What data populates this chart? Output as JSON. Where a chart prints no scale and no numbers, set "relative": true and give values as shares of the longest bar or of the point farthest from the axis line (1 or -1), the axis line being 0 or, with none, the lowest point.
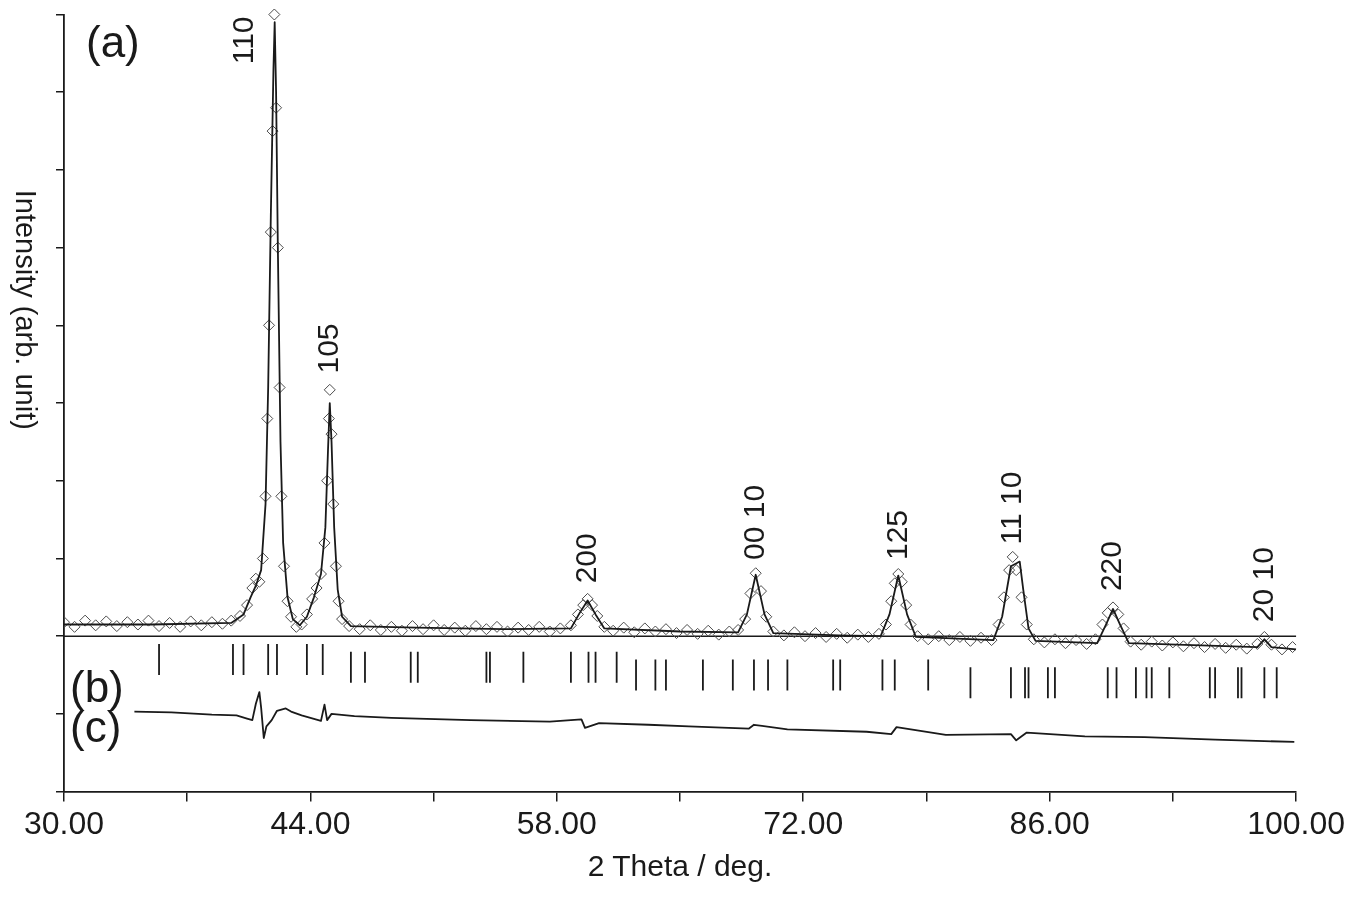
{
  "chart_data": {
    "type": "line",
    "xlabel": "2 Theta / deg.",
    "ylabel": "Intensity (arb. unit)",
    "relative": true,
    "xlim": [
      30,
      100
    ],
    "xticks": [
      {
        "value": 30,
        "label": "30.00"
      },
      {
        "value": 37,
        "label": null
      },
      {
        "value": 44,
        "label": "44.00"
      },
      {
        "value": 51,
        "label": null
      },
      {
        "value": 58,
        "label": "58.00"
      },
      {
        "value": 65,
        "label": null
      },
      {
        "value": 72,
        "label": "72.00"
      },
      {
        "value": 79,
        "label": null
      },
      {
        "value": 86,
        "label": "86.00"
      },
      {
        "value": 93,
        "label": null
      },
      {
        "value": 100,
        "label": "100.00"
      }
    ],
    "ref_lines": [
      {
        "axis": "y",
        "value": 0.2,
        "color": "#1a1a1a"
      }
    ],
    "annotations": [
      "(a)",
      "(b)",
      "(c)",
      {
        "text": "110",
        "x": 41.95,
        "y": 1.0
      },
      {
        "text": "105",
        "x": 45.1,
        "y": 0.52
      },
      {
        "text": "200",
        "x": 59.75,
        "y": 0.25
      },
      {
        "text": "00 10",
        "x": 69.3,
        "y": 0.28
      },
      {
        "text": "125",
        "x": 77.4,
        "y": 0.28
      },
      {
        "text": "11 10",
        "x": 83.9,
        "y": 0.3
      },
      {
        "text": "220",
        "x": 89.6,
        "y": 0.24
      },
      {
        "text": "20 10",
        "x": 98.2,
        "y": 0.2
      }
    ],
    "series": [
      {
        "type": "scatter",
        "marker": "diamond",
        "color": "#4d4d4d",
        "x": [
          30,
          30.6,
          31.2,
          31.8,
          32.4,
          33,
          33.6,
          34.2,
          34.8,
          35.4,
          36,
          36.6,
          37.2,
          37.8,
          38.4,
          39,
          39.5,
          40,
          40.4,
          40.7,
          40.9,
          41.1,
          41.3,
          41.45,
          41.55,
          41.65,
          41.75,
          41.85,
          41.95,
          42.05,
          42.15,
          42.25,
          42.35,
          42.5,
          42.7,
          42.9,
          43.2,
          43.5,
          43.8,
          44.1,
          44.35,
          44.6,
          44.8,
          44.95,
          45.05,
          45.1,
          45.2,
          45.3,
          45.45,
          45.6,
          45.8,
          46.2,
          46.8,
          47.4,
          48,
          48.6,
          49.2,
          49.8,
          50.4,
          51,
          51.6,
          52.2,
          52.8,
          53.4,
          54,
          54.6,
          55.2,
          55.8,
          56.4,
          57,
          57.6,
          58.2,
          58.8,
          59.2,
          59.5,
          59.75,
          60,
          60.3,
          60.7,
          61.2,
          61.8,
          62.4,
          63,
          63.6,
          64.2,
          64.8,
          65.4,
          66,
          66.6,
          67.2,
          67.8,
          68.3,
          68.7,
          69,
          69.3,
          69.6,
          69.9,
          70.3,
          70.9,
          71.5,
          72.1,
          72.7,
          73.3,
          73.9,
          74.5,
          75.1,
          75.7,
          76.3,
          76.7,
          77,
          77.2,
          77.4,
          77.6,
          77.85,
          78.1,
          78.5,
          79.1,
          79.7,
          80.3,
          80.9,
          81.5,
          82.1,
          82.7,
          83.1,
          83.4,
          83.7,
          83.9,
          84.1,
          84.4,
          84.7,
          85.1,
          85.7,
          86.3,
          86.9,
          87.5,
          88.1,
          88.6,
          89,
          89.3,
          89.6,
          89.9,
          90.2,
          90.6,
          91.2,
          91.8,
          92.4,
          93,
          93.6,
          94.2,
          94.8,
          95.4,
          96,
          96.6,
          97.2,
          97.8,
          98.2,
          98.6,
          99.2,
          99.8
        ],
        "values": [
          0.218,
          0.212,
          0.22,
          0.214,
          0.219,
          0.213,
          0.218,
          0.215,
          0.22,
          0.213,
          0.217,
          0.212,
          0.219,
          0.214,
          0.218,
          0.216,
          0.22,
          0.226,
          0.24,
          0.262,
          0.274,
          0.27,
          0.3,
          0.38,
          0.48,
          0.6,
          0.72,
          0.85,
          1.0,
          0.88,
          0.7,
          0.52,
          0.38,
          0.29,
          0.245,
          0.225,
          0.212,
          0.215,
          0.228,
          0.248,
          0.262,
          0.28,
          0.32,
          0.4,
          0.48,
          0.517,
          0.46,
          0.37,
          0.29,
          0.245,
          0.222,
          0.213,
          0.209,
          0.214,
          0.208,
          0.212,
          0.207,
          0.213,
          0.209,
          0.214,
          0.208,
          0.211,
          0.207,
          0.213,
          0.209,
          0.212,
          0.206,
          0.211,
          0.208,
          0.212,
          0.206,
          0.21,
          0.214,
          0.228,
          0.24,
          0.248,
          0.24,
          0.226,
          0.212,
          0.207,
          0.211,
          0.205,
          0.21,
          0.206,
          0.209,
          0.204,
          0.208,
          0.203,
          0.207,
          0.202,
          0.206,
          0.208,
          0.222,
          0.255,
          0.281,
          0.258,
          0.225,
          0.206,
          0.201,
          0.205,
          0.2,
          0.204,
          0.199,
          0.203,
          0.198,
          0.202,
          0.199,
          0.203,
          0.215,
          0.245,
          0.268,
          0.28,
          0.27,
          0.24,
          0.215,
          0.2,
          0.196,
          0.2,
          0.195,
          0.199,
          0.194,
          0.198,
          0.195,
          0.215,
          0.25,
          0.285,
          0.302,
          0.285,
          0.25,
          0.215,
          0.196,
          0.192,
          0.196,
          0.191,
          0.195,
          0.19,
          0.196,
          0.215,
          0.23,
          0.237,
          0.228,
          0.21,
          0.193,
          0.189,
          0.193,
          0.188,
          0.192,
          0.187,
          0.191,
          0.186,
          0.19,
          0.185,
          0.189,
          0.184,
          0.19,
          0.199,
          0.189,
          0.183,
          0.186
        ]
      },
      {
        "color": "#1a1a1a",
        "x": [
          30,
          35,
          39.5,
          40.2,
          40.6,
          40.9,
          41.2,
          41.45,
          41.6,
          41.75,
          41.9,
          41.97,
          42.05,
          42.15,
          42.3,
          42.45,
          42.7,
          43,
          43.4,
          43.8,
          44.2,
          44.6,
          44.85,
          45,
          45.1,
          45.2,
          45.35,
          45.55,
          45.8,
          46.3,
          50,
          55,
          58.8,
          59.3,
          59.75,
          60.2,
          60.7,
          65,
          68.3,
          68.8,
          69.3,
          69.8,
          70.3,
          74,
          76.4,
          76.9,
          77.4,
          77.9,
          78.4,
          82.8,
          83.3,
          83.8,
          84.3,
          84.5,
          84.8,
          85.2,
          88.7,
          89.2,
          89.6,
          90,
          90.5,
          97.8,
          98.2,
          98.6,
          100
        ],
        "values": [
          0.215,
          0.215,
          0.217,
          0.228,
          0.25,
          0.265,
          0.285,
          0.37,
          0.52,
          0.74,
          0.93,
          0.99,
          0.9,
          0.7,
          0.45,
          0.32,
          0.25,
          0.222,
          0.214,
          0.225,
          0.25,
          0.28,
          0.34,
          0.44,
          0.5,
          0.45,
          0.34,
          0.26,
          0.225,
          0.213,
          0.211,
          0.209,
          0.21,
          0.23,
          0.246,
          0.228,
          0.21,
          0.206,
          0.205,
          0.228,
          0.279,
          0.228,
          0.204,
          0.201,
          0.2,
          0.228,
          0.278,
          0.228,
          0.199,
          0.195,
          0.225,
          0.29,
          0.296,
          0.26,
          0.21,
          0.194,
          0.191,
          0.215,
          0.235,
          0.215,
          0.191,
          0.186,
          0.196,
          0.186,
          0.183
        ]
      },
      {
        "color": "#1a1a1a",
        "x": [
          35.4,
          35.4,
          null,
          39.6,
          39.6,
          null,
          40.2,
          40.2,
          null,
          41.6,
          41.6,
          null,
          42.1,
          42.1,
          null,
          43.8,
          43.8,
          null,
          44.7,
          44.7,
          null,
          46.3,
          46.3,
          null,
          47.1,
          47.1,
          null,
          49.7,
          49.7,
          null,
          50.1,
          50.1,
          null,
          54,
          54,
          null,
          54.2,
          54.2,
          null,
          56.1,
          56.1,
          null,
          58.8,
          58.8,
          null,
          59.8,
          59.8,
          null,
          60.2,
          60.2,
          null,
          61.4,
          61.4,
          null,
          62.5,
          62.5,
          null,
          63.6,
          63.6,
          null,
          64.2,
          64.2,
          null,
          66.3,
          66.3,
          null,
          68,
          68,
          null,
          69.2,
          69.2,
          null,
          70,
          70,
          null,
          71.1,
          71.1,
          null,
          73.7,
          73.7,
          null,
          74.1,
          74.1,
          null,
          76.5,
          76.5,
          null,
          77.2,
          77.2,
          null,
          79.1,
          79.1,
          null,
          81.5,
          81.5,
          null,
          83.8,
          83.8,
          null,
          84.6,
          84.6,
          null,
          84.8,
          84.8,
          null,
          85.9,
          85.9,
          null,
          86.3,
          86.3,
          null,
          89.3,
          89.3,
          null,
          89.8,
          89.8,
          null,
          90.9,
          90.9,
          null,
          91.5,
          91.5,
          null,
          91.8,
          91.8,
          null,
          92.8,
          92.8,
          null,
          95.1,
          95.1,
          null,
          95.4,
          95.4,
          null,
          96.7,
          96.7,
          null,
          96.9,
          96.9,
          null,
          98.2,
          98.2,
          null,
          98.9,
          98.9
        ],
        "values": [
          0.15,
          0.19,
          null,
          0.15,
          0.19,
          null,
          0.15,
          0.19,
          null,
          0.15,
          0.19,
          null,
          0.15,
          0.19,
          null,
          0.15,
          0.19,
          null,
          0.15,
          0.19,
          null,
          0.14,
          0.18,
          null,
          0.14,
          0.18,
          null,
          0.14,
          0.18,
          null,
          0.14,
          0.18,
          null,
          0.14,
          0.18,
          null,
          0.14,
          0.18,
          null,
          0.14,
          0.18,
          null,
          0.14,
          0.18,
          null,
          0.14,
          0.18,
          null,
          0.14,
          0.18,
          null,
          0.14,
          0.18,
          null,
          0.13,
          0.17,
          null,
          0.13,
          0.17,
          null,
          0.13,
          0.17,
          null,
          0.13,
          0.17,
          null,
          0.13,
          0.17,
          null,
          0.13,
          0.17,
          null,
          0.13,
          0.17,
          null,
          0.13,
          0.17,
          null,
          0.13,
          0.17,
          null,
          0.13,
          0.17,
          null,
          0.13,
          0.17,
          null,
          0.13,
          0.17,
          null,
          0.13,
          0.17,
          null,
          0.12,
          0.16,
          null,
          0.12,
          0.16,
          null,
          0.12,
          0.16,
          null,
          0.12,
          0.16,
          null,
          0.12,
          0.16,
          null,
          0.12,
          0.16,
          null,
          0.12,
          0.16,
          null,
          0.12,
          0.16,
          null,
          0.12,
          0.16,
          null,
          0.12,
          0.16,
          null,
          0.12,
          0.16,
          null,
          0.12,
          0.16,
          null,
          0.12,
          0.16,
          null,
          0.12,
          0.16,
          null,
          0.12,
          0.16,
          null,
          0.12,
          0.16,
          null,
          0.12,
          0.16,
          null,
          0.12,
          0.16
        ]
      },
      {
        "color": "#1a1a1a",
        "x": [
          34,
          36.1,
          38.4,
          39.8,
          40.4,
          40.7,
          40.9,
          41.1,
          41.2,
          41.35,
          41.5,
          41.8,
          42.1,
          42.6,
          42.9,
          43.5,
          44.3,
          44.6,
          44.8,
          44.95,
          45.2,
          46.5,
          48.6,
          53.1,
          57.6,
          59.4,
          59.6,
          60.4,
          63.2,
          65.5,
          68.9,
          69.2,
          71.1,
          75.6,
          77,
          77.3,
          80.1,
          83.8,
          84.1,
          84.7,
          88,
          91.4,
          95.4,
          98.2,
          99.9
        ],
        "values": [
          0.103,
          0.102,
          0.099,
          0.098,
          0.094,
          0.092,
          0.113,
          0.128,
          0.108,
          0.069,
          0.084,
          0.092,
          0.104,
          0.107,
          0.103,
          0.098,
          0.093,
          0.091,
          0.112,
          0.092,
          0.1,
          0.097,
          0.095,
          0.092,
          0.09,
          0.093,
          0.082,
          0.088,
          0.086,
          0.084,
          0.081,
          0.086,
          0.08,
          0.077,
          0.074,
          0.083,
          0.073,
          0.074,
          0.066,
          0.076,
          0.071,
          0.07,
          0.067,
          0.065,
          0.064
        ]
      }
    ]
  }
}
